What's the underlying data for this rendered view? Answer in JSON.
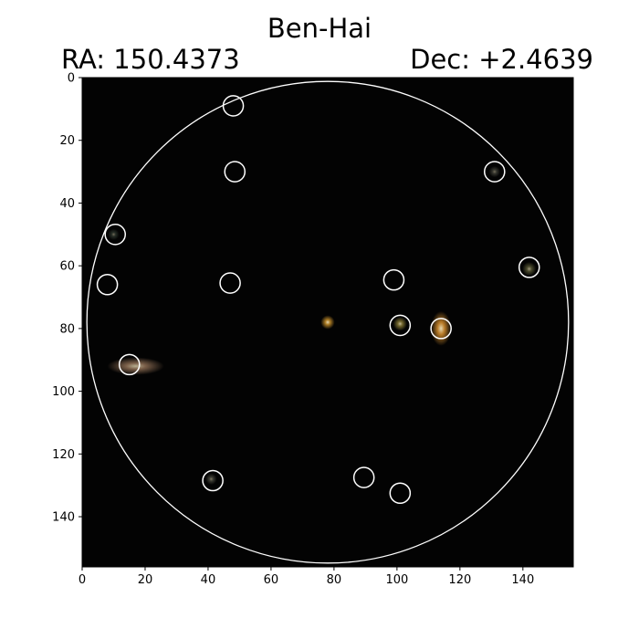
{
  "title": "Ben-Hai",
  "ra_label": "RA: 150.4373",
  "dec_label": "Dec: +2.4639",
  "axes": {
    "x_ticks": [
      0,
      20,
      40,
      60,
      80,
      100,
      120,
      140
    ],
    "y_ticks": [
      0,
      20,
      40,
      60,
      80,
      100,
      120,
      140
    ],
    "xlim": [
      0,
      156
    ],
    "ylim": [
      0,
      156
    ],
    "y_inverted": true
  },
  "image": {
    "background": "#030303",
    "overlay_color": "#ffffff",
    "aperture": {
      "cx": 78,
      "cy": 78,
      "r": 76.5
    },
    "sources": [
      {
        "x": 78,
        "y": 78,
        "rx": 2.2,
        "ry": 2.2,
        "color": "#c8902a",
        "intensity": 1
      },
      {
        "x": 114,
        "y": 80,
        "rx": 3.2,
        "ry": 5.5,
        "color": "#d8902e",
        "intensity": 1
      },
      {
        "x": 101,
        "y": 78.5,
        "rx": 2.2,
        "ry": 2.2,
        "color": "#9a8a3a",
        "intensity": 0.85
      },
      {
        "x": 17,
        "y": 92,
        "rx": 9,
        "ry": 2.8,
        "color": "#b08868",
        "intensity": 0.8
      },
      {
        "x": 142,
        "y": 61,
        "rx": 2.2,
        "ry": 2.2,
        "color": "#7a7a4a",
        "intensity": 0.7
      },
      {
        "x": 131,
        "y": 30,
        "rx": 1.8,
        "ry": 1.8,
        "color": "#777766",
        "intensity": 0.5
      },
      {
        "x": 10,
        "y": 50,
        "rx": 1.8,
        "ry": 1.8,
        "color": "#556655",
        "intensity": 0.5
      },
      {
        "x": 41,
        "y": 128,
        "rx": 1.8,
        "ry": 1.8,
        "color": "#777766",
        "intensity": 0.55
      }
    ],
    "markers": [
      {
        "x": 48,
        "y": 9
      },
      {
        "x": 48.5,
        "y": 30
      },
      {
        "x": 131,
        "y": 30
      },
      {
        "x": 10.5,
        "y": 50
      },
      {
        "x": 142,
        "y": 60.5
      },
      {
        "x": 8,
        "y": 66
      },
      {
        "x": 47,
        "y": 65.5
      },
      {
        "x": 99,
        "y": 64.5
      },
      {
        "x": 101,
        "y": 79
      },
      {
        "x": 114,
        "y": 80
      },
      {
        "x": 15,
        "y": 91.5
      },
      {
        "x": 41.5,
        "y": 128.5
      },
      {
        "x": 89.5,
        "y": 127.5
      },
      {
        "x": 101,
        "y": 132.5
      }
    ],
    "marker_radius": 3.2
  }
}
